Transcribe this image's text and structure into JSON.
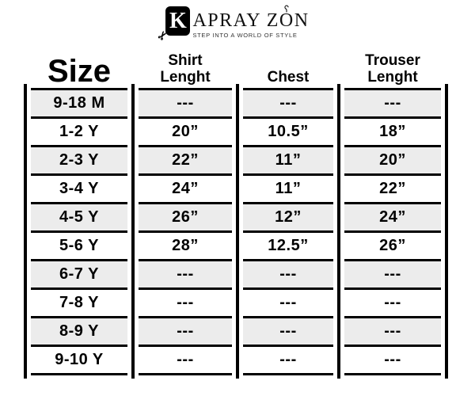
{
  "logo": {
    "k": "K",
    "rest1": "APRAY Z",
    "o": "O",
    "n": "N",
    "tagline": "STEP INTO A WORLD OF STYLE",
    "scissors_glyph": "✂"
  },
  "colors": {
    "row_shade": "#ececec",
    "line": "#000000",
    "background": "#ffffff"
  },
  "table": {
    "columns": [
      {
        "id": "size",
        "header_lines": [
          "Size"
        ]
      },
      {
        "id": "shirt-length",
        "header_lines": [
          "Shirt",
          "Lenght"
        ]
      },
      {
        "id": "chest",
        "header_lines": [
          "Chest"
        ]
      },
      {
        "id": "trouser-length",
        "header_lines": [
          "Trouser",
          "Lenght"
        ]
      }
    ],
    "rows": [
      {
        "shaded": true,
        "cells": [
          "9-18 M",
          "---",
          "---",
          "---"
        ]
      },
      {
        "shaded": false,
        "cells": [
          "1-2 Y",
          "20”",
          "10.5”",
          "18”"
        ]
      },
      {
        "shaded": true,
        "cells": [
          "2-3 Y",
          "22”",
          "11”",
          "20”"
        ]
      },
      {
        "shaded": false,
        "cells": [
          "3-4 Y",
          "24”",
          "11”",
          "22”"
        ]
      },
      {
        "shaded": true,
        "cells": [
          "4-5 Y",
          "26”",
          "12”",
          "24”"
        ]
      },
      {
        "shaded": false,
        "cells": [
          "5-6 Y",
          "28”",
          "12.5”",
          "26”"
        ]
      },
      {
        "shaded": true,
        "cells": [
          "6-7 Y",
          "---",
          "---",
          "---"
        ]
      },
      {
        "shaded": false,
        "cells": [
          "7-8 Y",
          "---",
          "---",
          "---"
        ]
      },
      {
        "shaded": true,
        "cells": [
          "8-9 Y",
          "---",
          "---",
          "---"
        ]
      },
      {
        "shaded": false,
        "cells": [
          "9-10 Y",
          "---",
          "---",
          "---"
        ]
      }
    ]
  }
}
